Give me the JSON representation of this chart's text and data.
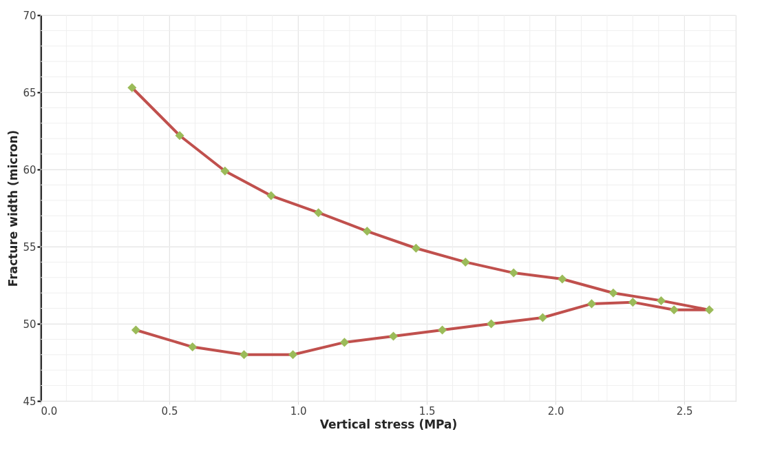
{
  "chart_data": {
    "type": "line",
    "xlabel": "Vertical stress (MPa)",
    "ylabel": "Fracture width (micron)",
    "xlim": [
      0,
      2.7
    ],
    "ylim": [
      45,
      70
    ],
    "xticks": [
      {
        "value": 0,
        "label": "0.0"
      },
      0.5,
      {
        "value": 1,
        "label": "1.0"
      },
      1.5,
      {
        "value": 2,
        "label": "2.0"
      },
      2.5
    ],
    "yticks": [
      45,
      50,
      55,
      60,
      65,
      70
    ],
    "grid": true,
    "legend": false,
    "series": [
      {
        "type": "line",
        "color": "#c0504d",
        "marker": "none",
        "x": [
          0.355,
          0.54,
          0.716,
          0.895,
          1.079,
          1.268,
          1.458,
          1.65,
          1.837,
          2.026,
          2.224,
          2.41,
          2.597,
          2.46,
          2.3,
          2.14,
          1.95,
          1.75,
          1.56,
          1.37,
          1.18,
          0.98,
          0.79,
          0.59,
          0.37
        ],
        "values": [
          65.3,
          62.2,
          59.9,
          58.3,
          57.2,
          56.0,
          54.9,
          54.0,
          53.3,
          52.9,
          52.0,
          51.5,
          50.9,
          50.9,
          51.4,
          51.3,
          50.4,
          50.0,
          49.6,
          49.2,
          48.8,
          48.0,
          48.0,
          48.5,
          49.6
        ]
      },
      {
        "type": "scatter",
        "color": "#9bbb59",
        "marker": "diamond",
        "x": [
          0.355,
          0.54,
          0.716,
          0.895,
          1.079,
          1.268,
          1.458,
          1.65,
          1.837,
          2.026,
          2.224,
          2.41,
          2.597,
          2.46,
          2.3,
          2.14,
          1.95,
          1.75,
          1.56,
          1.37,
          1.18,
          0.98,
          0.79,
          0.59,
          0.37
        ],
        "values": [
          65.3,
          62.2,
          59.9,
          58.3,
          57.2,
          56.0,
          54.9,
          54.0,
          53.3,
          52.9,
          52.0,
          51.5,
          50.9,
          50.9,
          51.4,
          51.3,
          50.4,
          50.0,
          49.6,
          49.2,
          48.8,
          48.0,
          48.0,
          48.5,
          49.6
        ]
      }
    ]
  }
}
